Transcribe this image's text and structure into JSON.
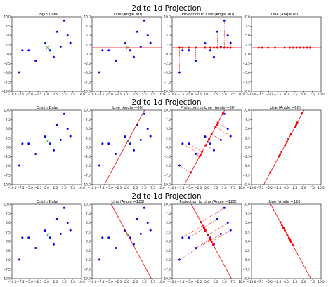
{
  "figure": {
    "rows": [
      {
        "suptitle": "2d to 1d Projection",
        "angle": 0,
        "panel_titles": [
          "Origin Data",
          "Line (Angle =0)",
          "Projection to Line (Angle =0)",
          "Line (Angle =0)"
        ]
      },
      {
        "suptitle": "2d to 1d Projection",
        "angle": 60,
        "panel_titles": [
          "Origin Data",
          "Line (Angle =60)",
          "Projection to Line (Angle =60)",
          "Line (Angle =60)"
        ]
      },
      {
        "suptitle": "2d to 1d Projection",
        "angle": 120,
        "panel_titles": [
          "Origin Data",
          "Line (Angle =120)",
          "Projection to Line (Angle =120)",
          "Line (Angle =120)"
        ]
      }
    ],
    "colors": {
      "points": "#0000ff",
      "line": "#ff0000",
      "projected": "#ff0000",
      "center": "#2ca02c",
      "axes": "#000000"
    }
  },
  "chart_data": {
    "type": "scatter",
    "xlim": [
      -10,
      10
    ],
    "ylim": [
      -10,
      10
    ],
    "xticks": [
      "−10.0",
      "−7.5",
      "−5.0",
      "−2.5",
      "0.0",
      "2.5",
      "5.0",
      "7.5",
      "10.0"
    ],
    "yticks": [
      "10.0",
      "7.5",
      "5.0",
      "2.5",
      "0.0",
      "−2.5",
      "−5.0",
      "−7.5",
      "−10.0"
    ],
    "points": [
      {
        "x": -7.9,
        "y": -4.9
      },
      {
        "x": -7.0,
        "y": 1.0
      },
      {
        "x": -5.2,
        "y": 1.0
      },
      {
        "x": -3.2,
        "y": -1.8
      },
      {
        "x": -0.5,
        "y": 2.9
      },
      {
        "x": 1.0,
        "y": 1.0
      },
      {
        "x": 2.0,
        "y": -0.8
      },
      {
        "x": 3.0,
        "y": 6.0
      },
      {
        "x": 4.0,
        "y": 2.0
      },
      {
        "x": 5.0,
        "y": 9.0
      },
      {
        "x": 6.0,
        "y": 5.0
      },
      {
        "x": 6.8,
        "y": 3.0
      }
    ],
    "center": {
      "x": 0.3,
      "y": 1.7
    },
    "angles": [
      0,
      60,
      120
    ]
  }
}
